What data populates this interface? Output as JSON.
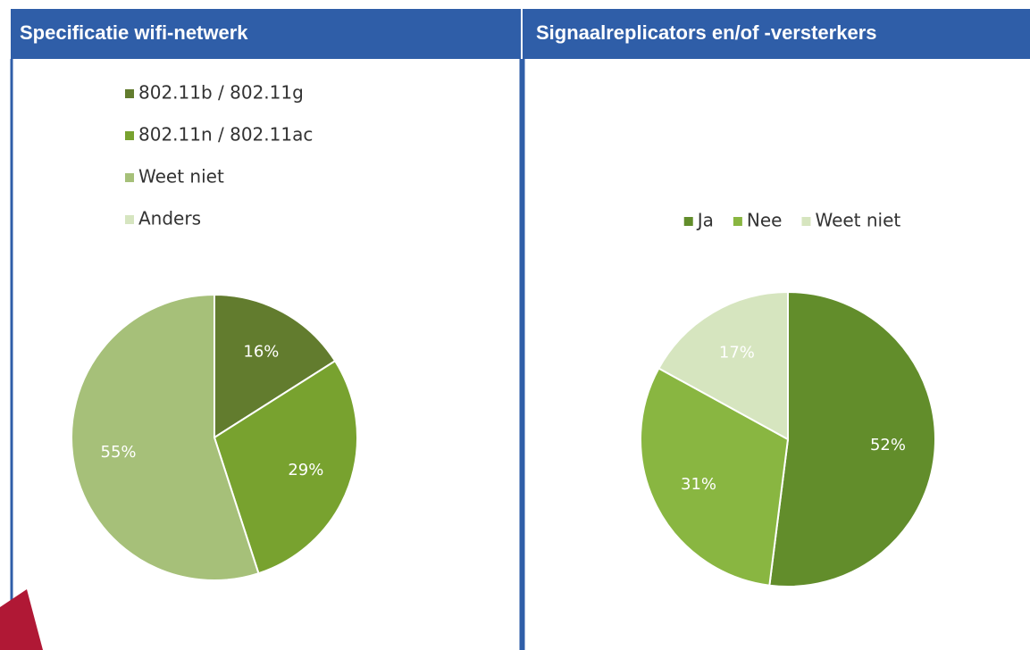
{
  "chart_data": [
    {
      "type": "pie",
      "title": "Specificatie wifi-netwerk",
      "categories": [
        "802.11b / 802.11g",
        "802.11n / 802.11ac",
        "Weet niet",
        "Anders"
      ],
      "values": [
        16,
        29,
        55,
        0
      ],
      "value_labels": [
        "16%",
        "29%",
        "55%",
        null
      ],
      "colors": [
        "#627c2e",
        "#78a22f",
        "#a6c079",
        "#d6e5c0"
      ],
      "legend": "top"
    },
    {
      "type": "pie",
      "title": "Signaalreplicators en/of -versterkers",
      "categories": [
        "Ja",
        "Nee",
        "Weet niet"
      ],
      "values": [
        52,
        31,
        17
      ],
      "value_labels": [
        "52%",
        "31%",
        "17%"
      ],
      "colors": [
        "#628d2b",
        "#89b641",
        "#d6e5bf"
      ],
      "legend": "top"
    }
  ]
}
